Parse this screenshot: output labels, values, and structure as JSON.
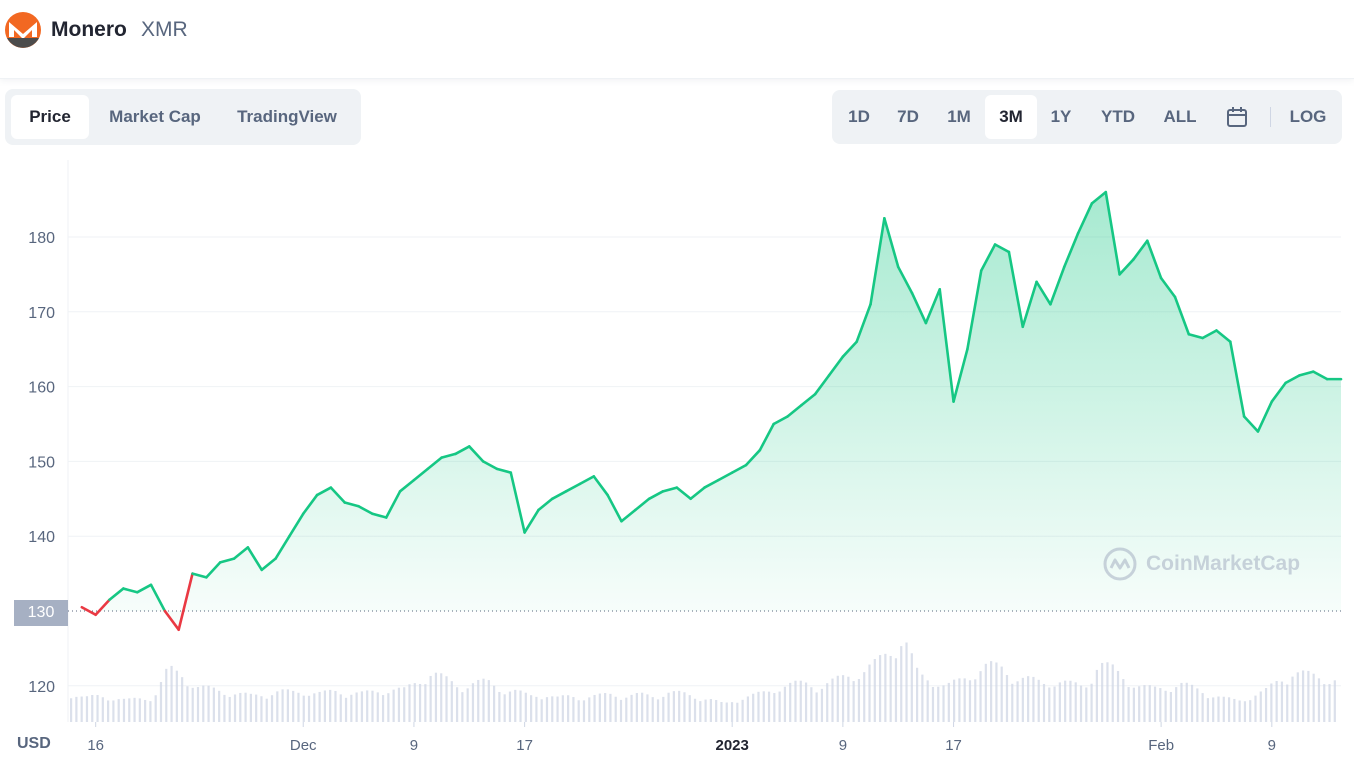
{
  "header": {
    "coin_name": "Monero",
    "coin_symbol": "XMR"
  },
  "view_tabs": [
    {
      "label": "Price",
      "active": true
    },
    {
      "label": "Market Cap",
      "active": false
    },
    {
      "label": "TradingView",
      "active": false
    }
  ],
  "range_tabs": [
    {
      "label": "1D",
      "active": false
    },
    {
      "label": "7D",
      "active": false
    },
    {
      "label": "1M",
      "active": false
    },
    {
      "label": "3M",
      "active": true
    },
    {
      "label": "1Y",
      "active": false
    },
    {
      "label": "YTD",
      "active": false
    },
    {
      "label": "ALL",
      "active": false
    }
  ],
  "calendar_icon": "calendar-icon",
  "log_label": "LOG",
  "currency_label": "USD",
  "current_price_label": "130",
  "watermark": "CoinMarketCap",
  "colors": {
    "up": "#16c784",
    "down": "#ea3943",
    "grid": "#eff2f5",
    "text": "#58667e"
  },
  "chart_data": {
    "type": "area",
    "title": "",
    "xlabel": "",
    "ylabel": "USD",
    "ylim": [
      118,
      190
    ],
    "yticks": [
      120,
      130,
      140,
      150,
      160,
      170,
      180
    ],
    "baseline": 130,
    "xticks": [
      {
        "date": "2022-11-16",
        "label": "16"
      },
      {
        "date": "2022-12-01",
        "label": "Dec"
      },
      {
        "date": "2022-12-09",
        "label": "9"
      },
      {
        "date": "2022-12-17",
        "label": "17"
      },
      {
        "date": "2023-01-01",
        "label": "2023"
      },
      {
        "date": "2023-01-09",
        "label": "9"
      },
      {
        "date": "2023-01-17",
        "label": "17"
      },
      {
        "date": "2023-02-01",
        "label": "Feb"
      },
      {
        "date": "2023-02-09",
        "label": "9"
      }
    ],
    "series": [
      {
        "values_x": [
          "2022-11-15",
          "2022-11-16",
          "2022-11-17",
          "2022-11-18",
          "2022-11-19",
          "2022-11-20",
          "2022-11-21",
          "2022-11-22",
          "2022-11-23",
          "2022-11-24",
          "2022-11-25",
          "2022-11-26",
          "2022-11-27",
          "2022-11-28",
          "2022-11-29",
          "2022-11-30",
          "2022-12-01",
          "2022-12-02",
          "2022-12-03",
          "2022-12-04",
          "2022-12-05",
          "2022-12-06",
          "2022-12-07",
          "2022-12-08",
          "2022-12-09",
          "2022-12-10",
          "2022-12-11",
          "2022-12-12",
          "2022-12-13",
          "2022-12-14",
          "2022-12-15",
          "2022-12-16",
          "2022-12-17",
          "2022-12-18",
          "2022-12-19",
          "2022-12-20",
          "2022-12-21",
          "2022-12-22",
          "2022-12-23",
          "2022-12-24",
          "2022-12-25",
          "2022-12-26",
          "2022-12-27",
          "2022-12-28",
          "2022-12-29",
          "2022-12-30",
          "2022-12-31",
          "2023-01-01",
          "2023-01-02",
          "2023-01-03",
          "2023-01-04",
          "2023-01-05",
          "2023-01-06",
          "2023-01-07",
          "2023-01-08",
          "2023-01-09",
          "2023-01-10",
          "2023-01-11",
          "2023-01-12",
          "2023-01-13",
          "2023-01-14",
          "2023-01-15",
          "2023-01-16",
          "2023-01-17",
          "2023-01-18",
          "2023-01-19",
          "2023-01-20",
          "2023-01-21",
          "2023-01-22",
          "2023-01-23",
          "2023-01-24",
          "2023-01-25",
          "2023-01-26",
          "2023-01-27",
          "2023-01-28",
          "2023-01-29",
          "2023-01-30",
          "2023-01-31",
          "2023-02-01",
          "2023-02-02",
          "2023-02-03",
          "2023-02-04",
          "2023-02-05",
          "2023-02-06",
          "2023-02-07",
          "2023-02-08",
          "2023-02-09",
          "2023-02-10",
          "2023-02-11",
          "2023-02-12",
          "2023-02-13",
          "2023-02-14"
        ],
        "values": [
          130.5,
          129.5,
          131.5,
          133.0,
          132.5,
          133.5,
          130.0,
          127.5,
          135.0,
          134.5,
          136.5,
          137.0,
          138.5,
          135.5,
          137.0,
          140.0,
          143.0,
          145.5,
          146.5,
          144.5,
          144.0,
          143.0,
          142.5,
          146.0,
          147.5,
          149.0,
          150.5,
          151.0,
          152.0,
          150.0,
          149.0,
          148.5,
          140.5,
          143.5,
          145.0,
          146.0,
          147.0,
          148.0,
          145.5,
          142.0,
          143.5,
          145.0,
          146.0,
          146.5,
          145.0,
          146.5,
          147.5,
          148.5,
          149.5,
          151.5,
          155.0,
          156.0,
          157.5,
          159.0,
          161.5,
          164.0,
          166.0,
          171.0,
          182.5,
          176.0,
          172.5,
          168.5,
          173.0,
          158.0,
          165.0,
          175.5,
          179.0,
          178.0,
          168.0,
          174.0,
          171.0,
          176.0,
          180.5,
          184.5,
          186.0,
          175.0,
          177.0,
          179.5,
          174.5,
          172.0,
          167.0,
          166.5,
          167.5,
          166.0,
          156.0,
          154.0,
          158.0,
          160.5,
          161.5,
          162.0,
          161.0,
          161.0
        ]
      }
    ],
    "volume_note": "relative volume bars shown at bottom",
    "volume": [
      0.25,
      0.2,
      0.22,
      0.21,
      0.18,
      0.2,
      0.22,
      0.45,
      0.4,
      0.3,
      0.28,
      0.26,
      0.24,
      0.22,
      0.24,
      0.26,
      0.25,
      0.26,
      0.24,
      0.26,
      0.25,
      0.24,
      0.26,
      0.28,
      0.27,
      0.35,
      0.42,
      0.36,
      0.3,
      0.33,
      0.34,
      0.28,
      0.26,
      0.22,
      0.24,
      0.2,
      0.22,
      0.21,
      0.22,
      0.24,
      0.22,
      0.23,
      0.22,
      0.25,
      0.24,
      0.22,
      0.19,
      0.15,
      0.2,
      0.22,
      0.25,
      0.3,
      0.32,
      0.33,
      0.3,
      0.35,
      0.4,
      0.42,
      0.5,
      0.62,
      0.7,
      0.4,
      0.36,
      0.3,
      0.35,
      0.42,
      0.48,
      0.46,
      0.38,
      0.36,
      0.33,
      0.35,
      0.32,
      0.3,
      0.5,
      0.45,
      0.36,
      0.3,
      0.28,
      0.3,
      0.32,
      0.28,
      0.24,
      0.2,
      0.18,
      0.22,
      0.26,
      0.36,
      0.42,
      0.4,
      0.38,
      0.36
    ]
  }
}
